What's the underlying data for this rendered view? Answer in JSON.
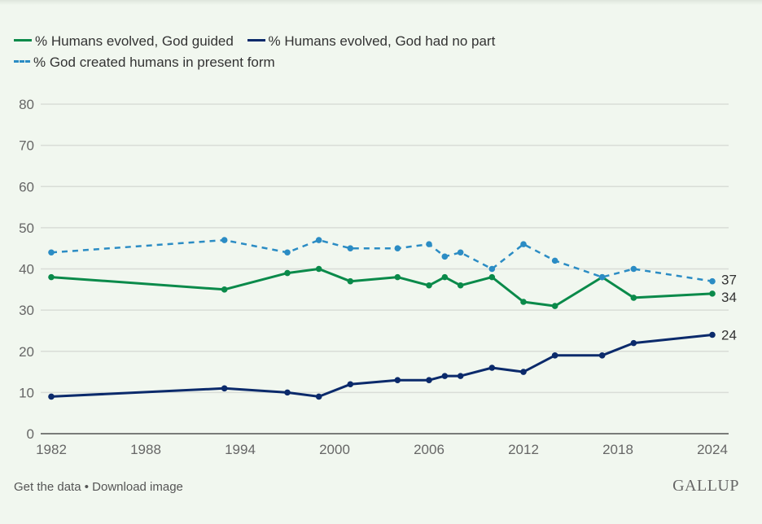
{
  "chart_data": {
    "type": "line",
    "title": "",
    "xlabel": "",
    "ylabel": "",
    "xlim": [
      1982,
      2024
    ],
    "ylim": [
      0,
      80
    ],
    "yticks": [
      0,
      10,
      20,
      30,
      40,
      50,
      60,
      70,
      80
    ],
    "xticks": [
      1982,
      1988,
      1994,
      2000,
      2006,
      2012,
      2018,
      2024
    ],
    "grid": true,
    "legend_position": "top",
    "x": [
      1982,
      1993,
      1997,
      1999,
      2001,
      2004,
      2006,
      2007,
      2008,
      2010,
      2012,
      2014,
      2017,
      2019,
      2024
    ],
    "series": [
      {
        "name": "% Humans evolved, God guided",
        "color": "#0a8a4a",
        "style": "solid",
        "values": [
          38,
          35,
          39,
          40,
          37,
          38,
          36,
          38,
          36,
          38,
          32,
          31,
          38,
          33,
          34
        ],
        "end_label": "34"
      },
      {
        "name": "% Humans evolved, God had no part",
        "color": "#0b2a6b",
        "style": "solid",
        "values": [
          9,
          11,
          10,
          9,
          12,
          13,
          13,
          14,
          14,
          16,
          15,
          19,
          19,
          22,
          24
        ],
        "end_label": "24"
      },
      {
        "name": "% God created humans in present form",
        "color": "#2b8cc4",
        "style": "dashed",
        "values": [
          44,
          47,
          44,
          47,
          45,
          45,
          46,
          43,
          44,
          40,
          46,
          42,
          38,
          40,
          37
        ],
        "end_label": "37"
      }
    ]
  },
  "legend": {
    "items": [
      "% Humans evolved, God guided",
      "% Humans evolved, God had no part",
      "% God created humans in present form"
    ]
  },
  "footer": {
    "get_data": "Get the data",
    "separator": "•",
    "download": "Download image",
    "brand": "GALLUP"
  }
}
